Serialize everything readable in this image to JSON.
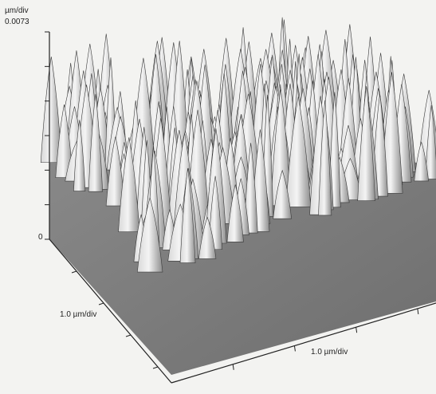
{
  "z_axis": {
    "unit": "µm/div",
    "max_label": "0.0073",
    "min_label": "0"
  },
  "x_axis": {
    "label": "1.0 µm/div"
  },
  "y_axis": {
    "label": "1.0 µm/div"
  }
}
